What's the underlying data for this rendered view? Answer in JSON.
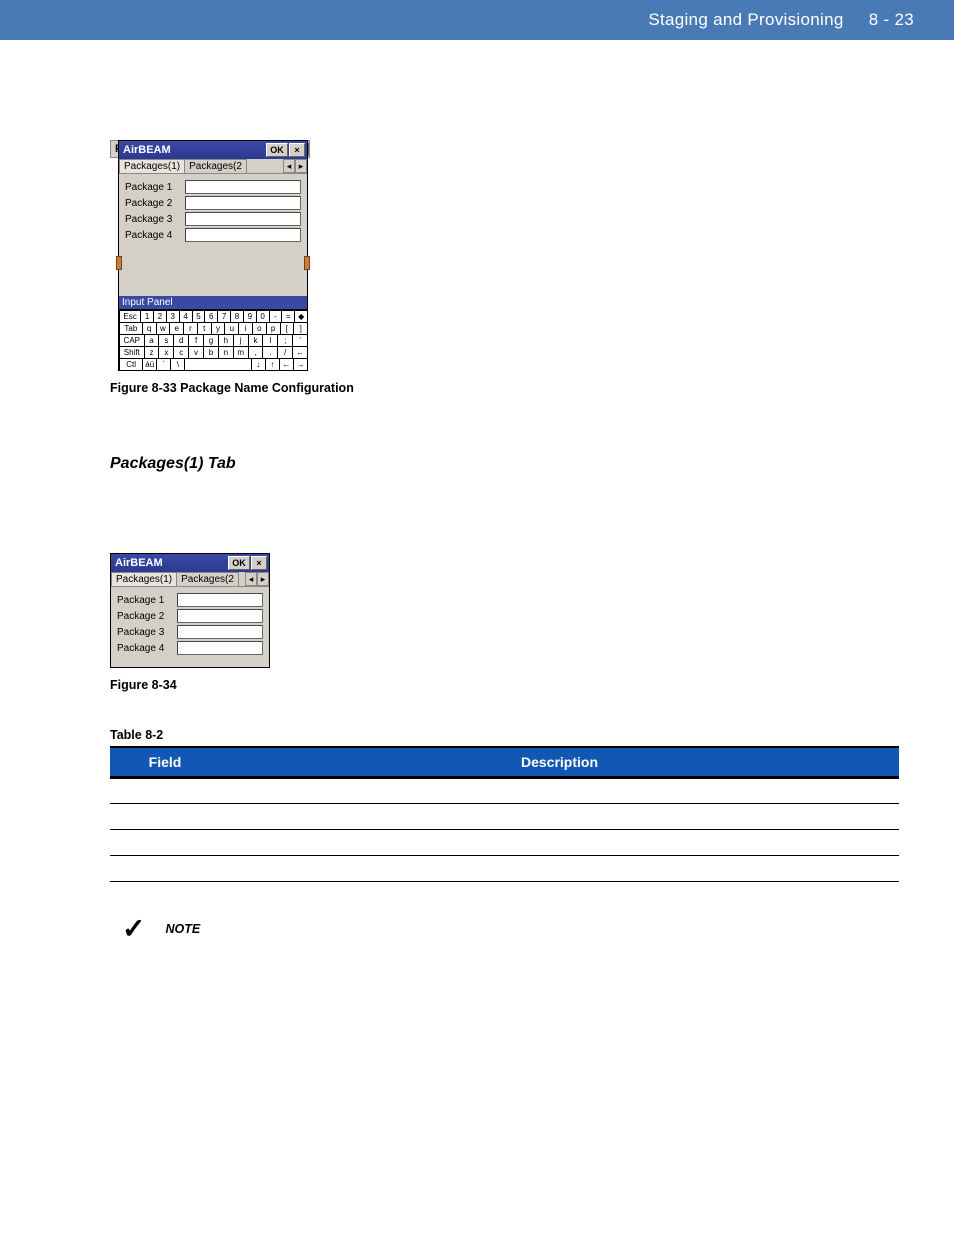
{
  "header": {
    "section_title": "Staging and Provisioning",
    "page_ref": "8 - 23"
  },
  "fig33": {
    "caption_label": "Figure 8-33",
    "caption_text": "Package Name Configuration",
    "outer_title": "File",
    "outer_close": "×",
    "inner_title": "AirBEAM",
    "ok_label": "OK",
    "close_label": "×",
    "tabs": {
      "active": "Packages(1)",
      "next": "Packages(2",
      "nav_left": "◂",
      "nav_right": "▸"
    },
    "packages": [
      "Package 1",
      "Package 2",
      "Package 3",
      "Package 4"
    ],
    "input_panel_label": "Input Panel",
    "kbd_rows": [
      [
        "Esc",
        "1",
        "2",
        "3",
        "4",
        "5",
        "6",
        "7",
        "8",
        "9",
        "0",
        "-",
        "=",
        "◆"
      ],
      [
        "Tab",
        "q",
        "w",
        "e",
        "r",
        "t",
        "y",
        "u",
        "i",
        "o",
        "p",
        "[",
        "]"
      ],
      [
        "CAP",
        "a",
        "s",
        "d",
        "f",
        "g",
        "h",
        "j",
        "k",
        "l",
        ";",
        "'"
      ],
      [
        "Shift",
        "z",
        "x",
        "c",
        "v",
        "b",
        "n",
        "m",
        ",",
        ".",
        "/",
        "←"
      ],
      [
        "Ctl",
        "áü",
        "`",
        "\\",
        " ",
        "↓",
        "↑",
        "←",
        "→"
      ]
    ]
  },
  "section": {
    "title": "Packages(1) Tab",
    "intro": ""
  },
  "fig34": {
    "caption_label": "Figure 8-34",
    "caption_text": "",
    "title": "AirBEAM",
    "ok_label": "OK",
    "close_label": "×",
    "tabs": {
      "active": "Packages(1)",
      "next": "Packages(2",
      "nav_left": "◂",
      "nav_right": "▸"
    },
    "packages": [
      "Package 1",
      "Package 2",
      "Package 3",
      "Package 4"
    ]
  },
  "table": {
    "caption_label": "Table 8-2",
    "caption_text": "",
    "headers": {
      "field": "Field",
      "description": "Description"
    },
    "rows": [
      {
        "field": "",
        "description": ""
      },
      {
        "field": "",
        "description": ""
      },
      {
        "field": "",
        "description": ""
      },
      {
        "field": "",
        "description": ""
      }
    ]
  },
  "note": {
    "check": "✓",
    "label": "NOTE",
    "text": ""
  },
  "colors": {
    "header_band": "#4a7ab5",
    "table_header": "#1157b3",
    "win_bg": "#d4d0c8",
    "titlebar": "#2a3a93"
  }
}
